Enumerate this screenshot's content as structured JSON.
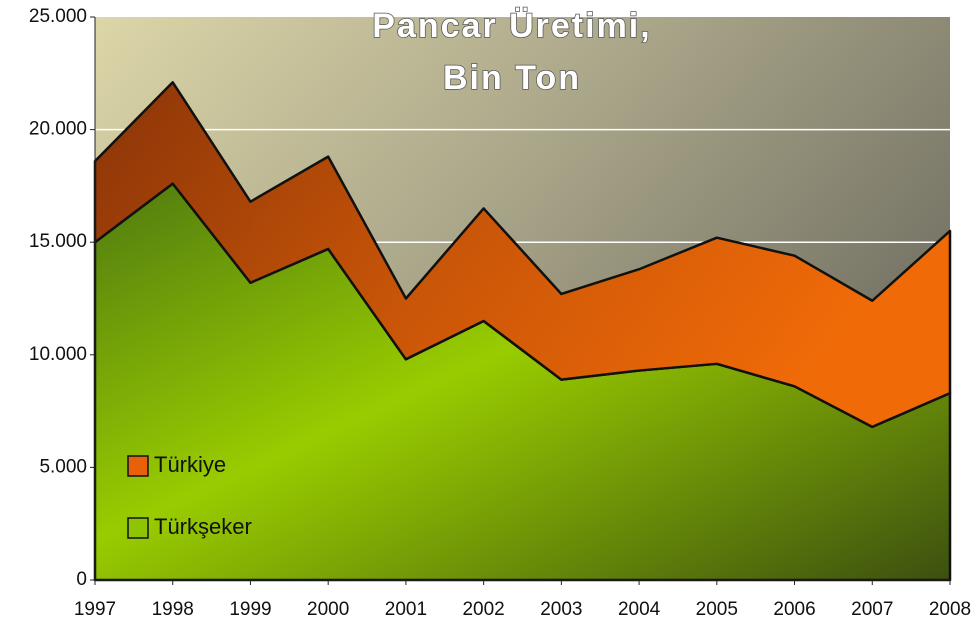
{
  "chart_data": {
    "type": "stacked_area",
    "title": [
      "Pancar Üretimi,",
      "Bin Ton"
    ],
    "categories": [
      "1997",
      "1998",
      "1999",
      "2000",
      "2001",
      "2002",
      "2003",
      "2004",
      "2005",
      "2006",
      "2007",
      "2008"
    ],
    "series": [
      {
        "name": "Türkşeker",
        "color": "#8fc400",
        "values": [
          15000,
          17600,
          13200,
          14700,
          9800,
          11500,
          8900,
          9300,
          9600,
          8600,
          6800,
          8300
        ]
      },
      {
        "name": "Türkiye",
        "color": "#e8600a",
        "values": [
          3600,
          4500,
          3600,
          4100,
          2700,
          5000,
          3800,
          4500,
          5600,
          5800,
          5600,
          7200
        ]
      }
    ],
    "ylim": [
      0,
      25000
    ],
    "yticks": [
      0,
      {
        "value": 5000,
        "label": "5.000"
      },
      {
        "value": 10000,
        "label": "10.000"
      },
      {
        "value": 15000,
        "label": "15.000"
      },
      {
        "value": 20000,
        "label": "20.000"
      },
      {
        "value": 25000,
        "label": "25.000"
      }
    ],
    "grid": true,
    "legend": "lower left"
  }
}
